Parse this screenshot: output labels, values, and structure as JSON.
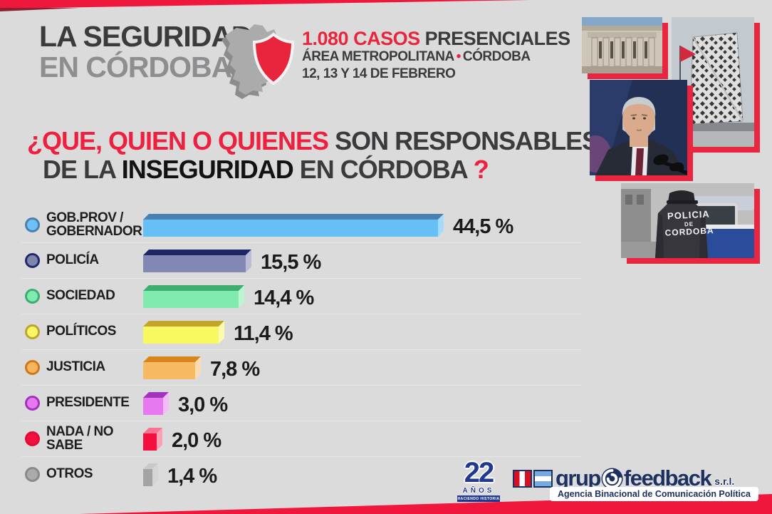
{
  "header": {
    "title_line1": "LA SEGURIDAD",
    "title_line2": "EN CÓRDOBA",
    "cases_red": "1.080 CASOS",
    "cases_dark": "PRESENCIALES",
    "area_part1": "ÁREA METROPOLITANA",
    "area_separator": "•",
    "area_part2": "CÓRDOBA",
    "dates": "12, 13 Y 14 DE FEBRERO"
  },
  "question": {
    "line1_red": "¿QUE, QUIEN O QUIENES",
    "line1_dark": "SON RESPONSABLES",
    "line2_prefix": "DE LA",
    "line2_black": "INSEGURIDAD",
    "line2_suffix": "EN CÓRDOBA",
    "question_mark": "?"
  },
  "chart_data": {
    "type": "bar",
    "orientation": "horizontal",
    "title": "¿Que, quien o quienes son responsables de la inseguridad en Córdoba?",
    "unit": "%",
    "xlim": [
      0,
      50
    ],
    "grid": false,
    "legend": "none",
    "categories": [
      "GOB.PROV /\nGOBERNADOR",
      "POLICÍA",
      "SOCIEDAD",
      "POLÍTICOS",
      "JUSTICIA",
      "PRESIDENTE",
      "NADA / NO SABE",
      "OTROS"
    ],
    "values": [
      44.5,
      15.5,
      14.4,
      11.4,
      7.8,
      3.0,
      2.0,
      1.4
    ],
    "value_labels": [
      "44,5 %",
      "15,5 %",
      "14,4 %",
      "11,4 %",
      "7,8 %",
      "3,0 %",
      "2,0 %",
      "1,4 %"
    ],
    "colors": [
      {
        "face": "#66BFF7",
        "top": "#4A80AF",
        "side": "#A5DCFB",
        "bullet": "#6EC1F5",
        "bullet_border": "#4A80AF"
      },
      {
        "face": "#8288B3",
        "top": "#202566",
        "side": "#B8BCD6",
        "bullet": "#7E86B0",
        "bullet_border": "#23276B"
      },
      {
        "face": "#80EBAD",
        "top": "#3EAE6F",
        "side": "#BDF4D4",
        "bullet": "#7FEBAE",
        "bullet_border": "#3BAE71"
      },
      {
        "face": "#F7F862",
        "top": "#C4A42A",
        "side": "#FBFBB0",
        "bullet": "#F7F763",
        "bullet_border": "#BFA42B"
      },
      {
        "face": "#F7BA64",
        "top": "#D8861C",
        "side": "#FBDCB1",
        "bullet": "#F7B45F",
        "bullet_border": "#D07818"
      },
      {
        "face": "#E878F0",
        "top": "#A133BE",
        "side": "#F3BBF7",
        "bullet": "#E878F0",
        "bullet_border": "#A133BE"
      },
      {
        "face": "#F50F3F",
        "top": "#F87291",
        "side": "#FA9FB4",
        "bullet": "#F50F3F",
        "bullet_border": "#E00C35"
      },
      {
        "face": "#A3A3A3",
        "top": "#C9C9C9",
        "side": "#D5D5D5",
        "bullet": "#ABABAB",
        "bullet_border": "#8A8A8A"
      }
    ]
  },
  "photos": {
    "police_text_line1": "POLICIA",
    "police_text_line2": "DE",
    "police_text_line3": "CORDOBA"
  },
  "footer": {
    "anniversary_number": "22",
    "anniversary_word": "AÑOS",
    "anniversary_tagline": "HACIENDO HISTORIA",
    "agency_name_prefix": "grup",
    "agency_name_suffix": "feedback",
    "agency_suffix": "s.r.l.",
    "agency_tagline": "Agencia Binacional de Comunicación Política"
  },
  "colors": {
    "accent_red": "#EE2040",
    "band_red": "#F0173D",
    "band_maroon": "#8A2030",
    "dark_text": "#3B3B3D",
    "gray_text": "#8E8E90",
    "navy_logo": "#1D3160",
    "background": "#DBDBDB"
  }
}
